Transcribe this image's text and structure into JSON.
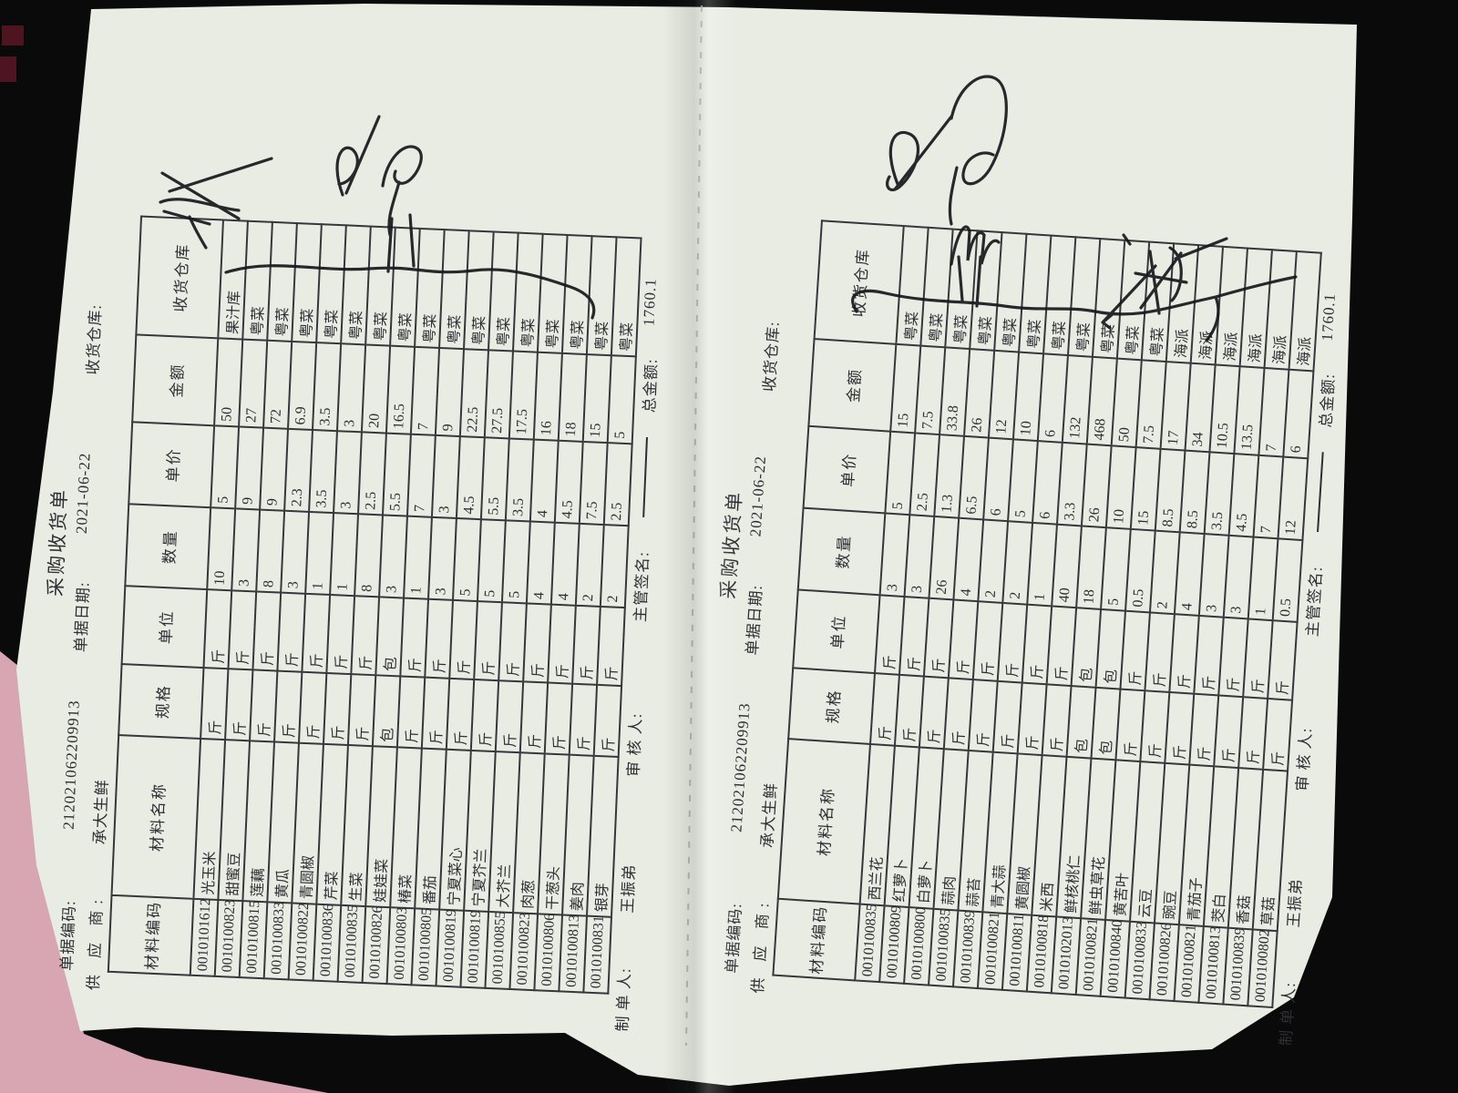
{
  "colors": {
    "background": "#0a0a0b",
    "paper": "#e9ece3",
    "pink_paper": "#d8a5b2",
    "ink": "#2e2f35",
    "handwriting": "#17181c"
  },
  "pages": [
    {
      "header": {
        "code_label": "单据编码:",
        "code": "212021062209913",
        "title": "采购收货单",
        "date_label": "单据日期:",
        "date": "2021-06-22",
        "warehouse_label": "收货仓库:",
        "supplier_label": "供 应 商:",
        "supplier": "承大生鲜"
      },
      "columns": [
        "材料编码",
        "材料名称",
        "规格",
        "单位",
        "数量",
        "单价",
        "金额",
        "收货仓库"
      ],
      "rows": [
        [
          "0010101612",
          "光玉米",
          "斤",
          "斤",
          "10",
          "5",
          "50",
          "果汁库"
        ],
        [
          "0010100823",
          "甜蜜豆",
          "斤",
          "斤",
          "3",
          "9",
          "27",
          "粤菜"
        ],
        [
          "0010100815",
          "莲藕",
          "斤",
          "斤",
          "8",
          "9",
          "72",
          "粤菜"
        ],
        [
          "0010100833",
          "黄瓜",
          "斤",
          "斤",
          "3",
          "2.3",
          "6.9",
          "粤菜"
        ],
        [
          "0010100822",
          "青圆椒",
          "斤",
          "斤",
          "1",
          "3.5",
          "3.5",
          "粤菜"
        ],
        [
          "0010100836",
          "芹菜",
          "斤",
          "斤",
          "1",
          "3",
          "3",
          "粤菜"
        ],
        [
          "0010100835",
          "生菜",
          "斤",
          "斤",
          "8",
          "2.5",
          "20",
          "粤菜"
        ],
        [
          "0010100826",
          "娃娃菜",
          "包",
          "包",
          "3",
          "5.5",
          "16.5",
          "粤菜"
        ],
        [
          "0010100803",
          "椿菜",
          "斤",
          "斤",
          "1",
          "7",
          "7",
          "粤菜"
        ],
        [
          "0010100805",
          "番茄",
          "斤",
          "斤",
          "3",
          "3",
          "9",
          "粤菜"
        ],
        [
          "0010100819",
          "宁夏菜心",
          "斤",
          "斤",
          "5",
          "4.5",
          "22.5",
          "粤菜"
        ],
        [
          "0010100819",
          "宁夏芥兰",
          "斤",
          "斤",
          "5",
          "5.5",
          "27.5",
          "粤菜"
        ],
        [
          "0010100855",
          "大芥兰",
          "斤",
          "斤",
          "5",
          "3.5",
          "17.5",
          "粤菜"
        ],
        [
          "0010100823",
          "肉葱",
          "斤",
          "斤",
          "4",
          "4",
          "16",
          "粤菜"
        ],
        [
          "0010100806",
          "干葱头",
          "斤",
          "斤",
          "4",
          "4.5",
          "18",
          "粤菜"
        ],
        [
          "0010100813",
          "姜肉",
          "斤",
          "斤",
          "2",
          "7.5",
          "15",
          "粤菜"
        ],
        [
          "0010100831",
          "银芽",
          "斤",
          "斤",
          "2",
          "2.5",
          "5",
          "粤菜"
        ]
      ],
      "footer": {
        "maker_label": "制 单 人:",
        "maker": "王振弟",
        "auditor_label": "审 核 人:",
        "sign_label": "主管签名:",
        "total_label": "总金额:",
        "total": "1760.1"
      }
    },
    {
      "header": {
        "code_label": "单据编码:",
        "code": "212021062209913",
        "title": "采购收货单",
        "date_label": "单据日期:",
        "date": "2021-06-22",
        "warehouse_label": "收货仓库:",
        "supplier_label": "供 应 商:",
        "supplier": "承大生鲜"
      },
      "columns": [
        "材料编码",
        "材料名称",
        "规格",
        "单位",
        "数量",
        "单价",
        "金额",
        "收货仓库"
      ],
      "rows": [
        [
          "0010100835",
          "西兰花",
          "斤",
          "斤",
          "3",
          "5",
          "15",
          "粤菜"
        ],
        [
          "0010100809",
          "红萝卜",
          "斤",
          "斤",
          "3",
          "2.5",
          "7.5",
          "粤菜"
        ],
        [
          "0010100800",
          "白萝卜",
          "斤",
          "斤",
          "26",
          "1.3",
          "33.8",
          "粤菜"
        ],
        [
          "0010100835",
          "蒜肉",
          "斤",
          "斤",
          "4",
          "6.5",
          "26",
          "粤菜"
        ],
        [
          "0010100839",
          "蒜苔",
          "斤",
          "斤",
          "2",
          "6",
          "12",
          "粤菜"
        ],
        [
          "0010100821",
          "青大蒜",
          "斤",
          "斤",
          "2",
          "5",
          "10",
          "粤菜"
        ],
        [
          "0010100811",
          "黄圆椒",
          "斤",
          "斤",
          "1",
          "6",
          "6",
          "粤菜"
        ],
        [
          "0010100818",
          "米西",
          "斤",
          "斤",
          "40",
          "3.3",
          "132",
          "粤菜"
        ],
        [
          "0010102013",
          "鲜核桃仁",
          "包",
          "包",
          "18",
          "26",
          "468",
          "粤菜"
        ],
        [
          "0010100821",
          "鲜虫草花",
          "包",
          "包",
          "5",
          "10",
          "50",
          "粤菜"
        ],
        [
          "0010100840",
          "黄苦叶",
          "斤",
          "斤",
          "0.5",
          "15",
          "7.5",
          "粤菜"
        ],
        [
          "0010100833",
          "云豆",
          "斤",
          "斤",
          "2",
          "8.5",
          "17",
          "海派"
        ],
        [
          "0010100826",
          "豌豆",
          "斤",
          "斤",
          "4",
          "8.5",
          "34",
          "海派"
        ],
        [
          "0010100821",
          "青茄子",
          "斤",
          "斤",
          "3",
          "3.5",
          "10.5",
          "海派"
        ],
        [
          "0010100813",
          "茭白",
          "斤",
          "斤",
          "3",
          "4.5",
          "13.5",
          "海派"
        ],
        [
          "0010100839",
          "香菇",
          "斤",
          "斤",
          "1",
          "7",
          "7",
          "海派"
        ],
        [
          "0010100802",
          "草菇",
          "斤",
          "斤",
          "0.5",
          "12",
          "6",
          "海派"
        ]
      ],
      "footer": {
        "maker_label": "制 单 人:",
        "maker": "王振弟",
        "auditor_label": "审 核 人:",
        "sign_label": "主管签名:",
        "total_label": "总金额:",
        "total": "1760.1"
      }
    }
  ]
}
